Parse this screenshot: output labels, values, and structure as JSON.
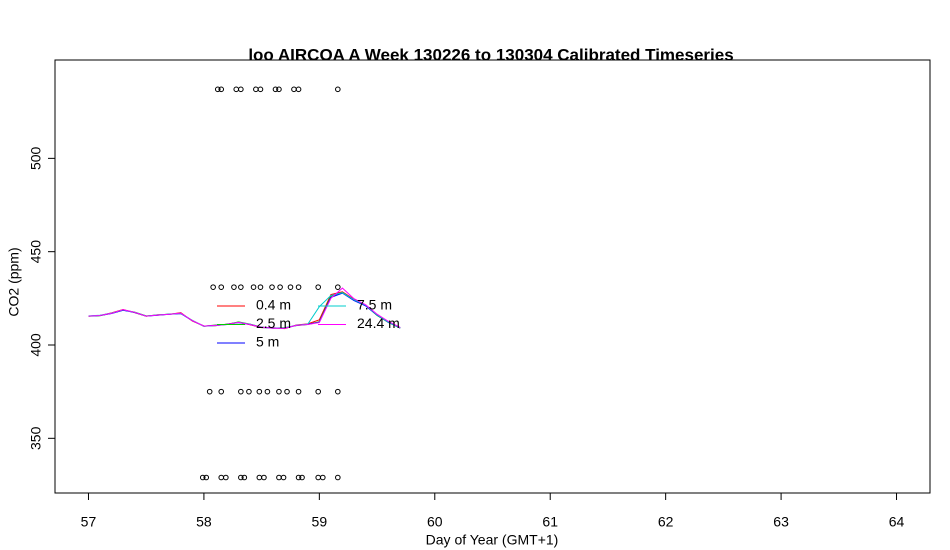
{
  "chart_data": {
    "type": "line",
    "title": "loo AIRCOA A  Week 130226 to 130304  Calibrated Timeseries",
    "x_label": "Day of Year (GMT+1)",
    "y_label": "CO2 (ppm)",
    "x": [
      57.0,
      57.1,
      57.2,
      57.3,
      57.4,
      57.5,
      57.6,
      57.7,
      57.8,
      57.9,
      58.0,
      58.1,
      58.2,
      58.3,
      58.4,
      58.5,
      58.6,
      58.7,
      58.8,
      58.9,
      59.0,
      59.1,
      59.2,
      59.3,
      59.4,
      59.5,
      59.6,
      59.7
    ],
    "series": [
      {
        "name": "0.4 m",
        "color": "#ff0000",
        "values": [
          415.5,
          415.8,
          417.2,
          419.0,
          417.3,
          415.4,
          416.2,
          416.4,
          417.3,
          412.8,
          410.2,
          410.3,
          411.2,
          412.2,
          410.8,
          409.3,
          409.2,
          408.8,
          410.7,
          411.3,
          413.5,
          427.0,
          428.5,
          424.5,
          421.5,
          416.2,
          412.3,
          409.2
        ]
      },
      {
        "name": "2.5 m",
        "color": "#00cc00",
        "values": [
          415.4,
          415.7,
          417.0,
          418.7,
          417.6,
          415.6,
          416.0,
          416.6,
          416.9,
          413.2,
          410.0,
          410.7,
          411.0,
          412.4,
          411.2,
          409.6,
          409.0,
          409.3,
          410.4,
          411.0,
          412.5,
          426.2,
          428.2,
          424.0,
          421.2,
          415.8,
          412.0,
          409.0
        ]
      },
      {
        "name": "5 m",
        "color": "#0000ff",
        "values": [
          415.5,
          415.8,
          416.9,
          418.6,
          417.4,
          415.5,
          415.9,
          416.5,
          416.8,
          413.0,
          410.1,
          410.5,
          411.1,
          412.0,
          411.0,
          409.5,
          409.1,
          409.0,
          410.5,
          411.1,
          412.2,
          425.5,
          427.8,
          423.8,
          421.0,
          416.0,
          412.1,
          409.1
        ]
      },
      {
        "name": "7.5 m",
        "color": "#00cccc",
        "values": [
          415.6,
          415.9,
          417.1,
          418.8,
          417.5,
          415.5,
          416.1,
          416.5,
          417.0,
          413.1,
          410.0,
          410.4,
          411.0,
          412.1,
          411.1,
          409.4,
          409.0,
          409.1,
          410.6,
          411.2,
          420.5,
          426.5,
          428.0,
          424.2,
          421.4,
          416.1,
          412.2,
          409.1
        ]
      },
      {
        "name": "24.4 m",
        "color": "#ff00ff",
        "values": [
          415.5,
          415.8,
          417.0,
          418.9,
          417.5,
          415.5,
          416.0,
          416.5,
          417.1,
          413.0,
          410.1,
          410.5,
          411.0,
          412.1,
          411.0,
          409.5,
          409.0,
          409.0,
          410.5,
          411.0,
          412.0,
          425.0,
          430.5,
          424.8,
          421.6,
          416.5,
          412.6,
          409.4
        ]
      }
    ],
    "marker_rows": [
      {
        "y": 537,
        "x": [
          58.12,
          58.15,
          58.28,
          58.32,
          58.45,
          58.49,
          58.62,
          58.65,
          58.78,
          58.82,
          59.16
        ]
      },
      {
        "y": 431,
        "x": [
          58.08,
          58.15,
          58.26,
          58.32,
          58.43,
          58.49,
          58.59,
          58.66,
          58.75,
          58.82,
          58.99,
          59.16
        ]
      },
      {
        "y": 375,
        "x": [
          58.05,
          58.15,
          58.32,
          58.39,
          58.48,
          58.55,
          58.65,
          58.72,
          58.82,
          58.99,
          59.16
        ]
      },
      {
        "y": 329,
        "x": [
          57.99,
          58.02,
          58.15,
          58.19,
          58.32,
          58.35,
          58.48,
          58.52,
          58.65,
          58.69,
          58.82,
          58.85,
          58.99,
          59.03,
          59.16
        ]
      }
    ],
    "xlim": [
      56.71,
      64.29
    ],
    "ylim": [
      320.7,
      552.7
    ],
    "xticks": [
      57,
      58,
      59,
      60,
      61,
      62,
      63,
      64
    ],
    "yticks": [
      350,
      400,
      450,
      500
    ],
    "legend": "center-left"
  }
}
